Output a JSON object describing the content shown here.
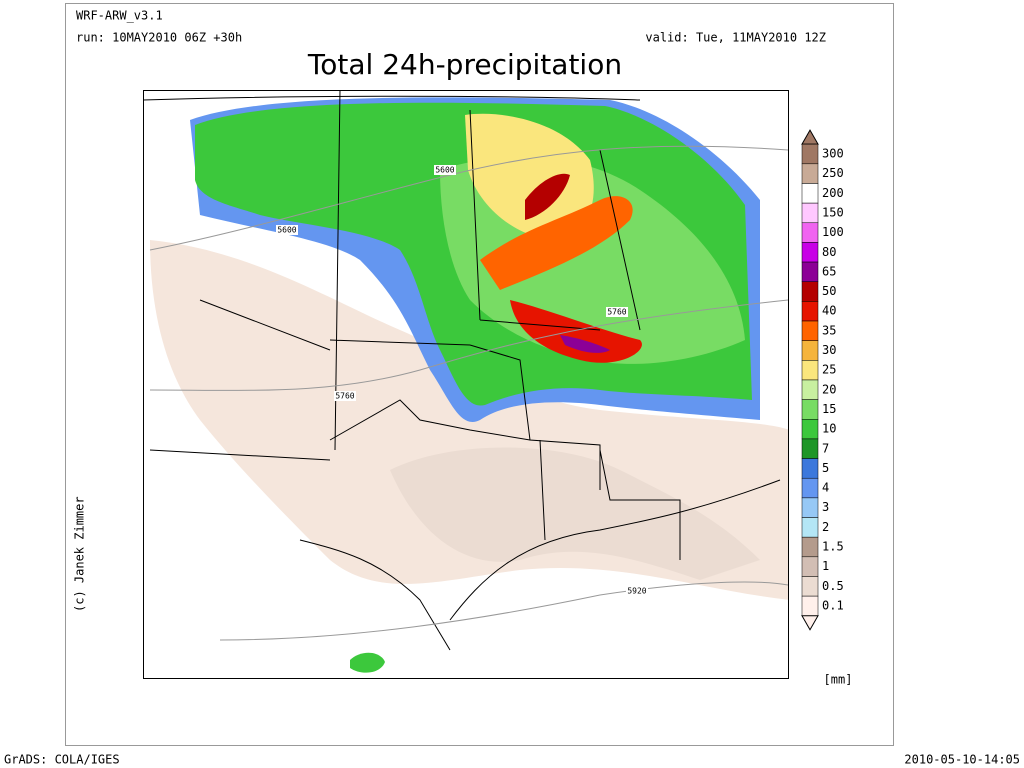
{
  "header": {
    "model": "WRF-ARW_v3.1",
    "run": "run: 10MAY2010 06Z +30h",
    "valid": "valid: Tue, 11MAY2010 12Z",
    "title": "Total 24h-precipitation"
  },
  "contour_labels": [
    "5600",
    "5600",
    "5760",
    "5760",
    "5920"
  ],
  "legend": {
    "unit": "[mm]",
    "levels": [
      {
        "label": "300",
        "color": "#a07864"
      },
      {
        "label": "250",
        "color": "#c8aa96"
      },
      {
        "label": "200",
        "color": "#ffffff"
      },
      {
        "label": "150",
        "color": "#ffc8ff"
      },
      {
        "label": "100",
        "color": "#f064f0"
      },
      {
        "label": "80",
        "color": "#c800e6"
      },
      {
        "label": "65",
        "color": "#8c0096"
      },
      {
        "label": "50",
        "color": "#b40000"
      },
      {
        "label": "40",
        "color": "#e61400"
      },
      {
        "label": "35",
        "color": "#ff6400"
      },
      {
        "label": "30",
        "color": "#f5b43c"
      },
      {
        "label": "25",
        "color": "#fae67d"
      },
      {
        "label": "20",
        "color": "#c8f0a0"
      },
      {
        "label": "15",
        "color": "#78dc64"
      },
      {
        "label": "10",
        "color": "#3cc83c"
      },
      {
        "label": "7",
        "color": "#1e9628"
      },
      {
        "label": "5",
        "color": "#3c78dc"
      },
      {
        "label": "4",
        "color": "#6496f0"
      },
      {
        "label": "3",
        "color": "#96c8f5"
      },
      {
        "label": "2",
        "color": "#b4e6f5"
      },
      {
        "label": "1.5",
        "color": "#b49b8c"
      },
      {
        "label": "1",
        "color": "#d2beb4"
      },
      {
        "label": "0.5",
        "color": "#ebdcd2"
      },
      {
        "label": "0.1",
        "color": "#fff0eb"
      }
    ]
  },
  "credit": "(c) Janek Zimmer",
  "footer": {
    "left": "GrADS: COLA/IGES",
    "right": "2010-05-10-14:05"
  }
}
